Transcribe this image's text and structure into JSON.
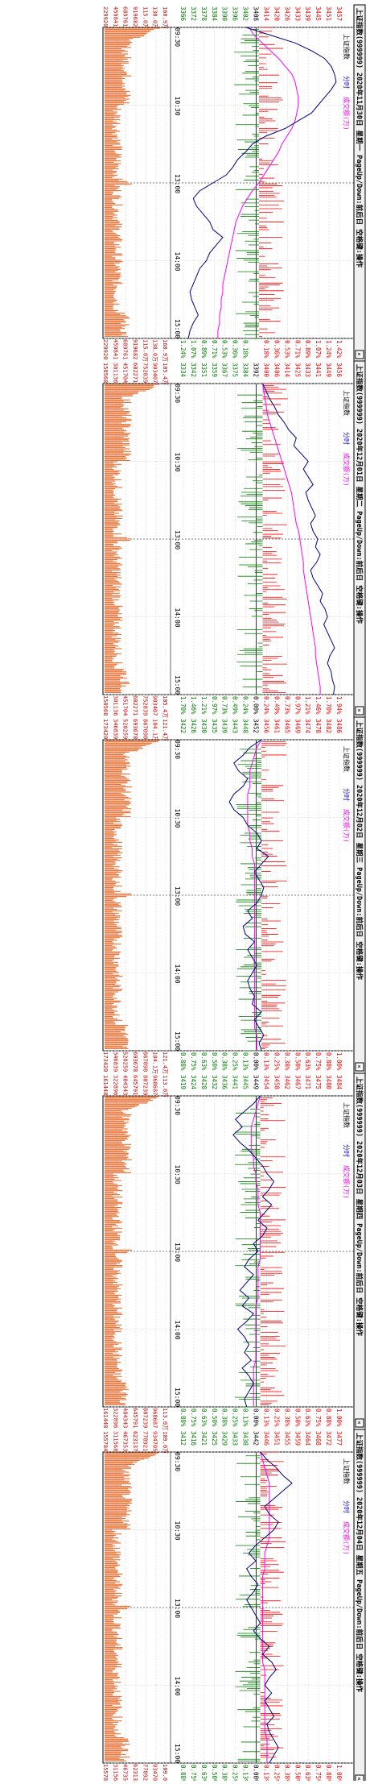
{
  "panels": [
    {
      "header": "上证指数(999999)  2020年11月30日 星期一  PageUp/Down:前后日 空格键:操作",
      "legend": {
        "name": "上证指数",
        "mode": "分时",
        "volume": "成交额(万)"
      },
      "close_btn": "×",
      "price_ticks": [
        "3457",
        "3451",
        "3445",
        "3439",
        "3433",
        "3426",
        "3420",
        "3414",
        "3408",
        "3402",
        "3396",
        "3390",
        "3384",
        "3378",
        "3372",
        "3366"
      ],
      "pct_ticks_left": [
        "1.42%",
        "1.24%",
        "1.07%",
        "0.89%",
        "0.71%",
        "0.53%",
        "0.36%",
        "0.18%",
        "",
        "0.18%",
        "0.36%",
        "0.53%",
        "0.71%",
        "0.89%",
        "1.07%",
        "1.24%"
      ],
      "pct_ticks_right": [
        "1.42%",
        "1.24%",
        "1.07%",
        "0.89%",
        "0.71%",
        "0.53%",
        "0.36%",
        "0.18%",
        "",
        "0.18%",
        "0.36%",
        "0.53%",
        "0.71%",
        "0.89%",
        "1.07%",
        "1.24%"
      ],
      "vol_ticks": [
        "160.9万",
        "138.0万",
        "115.0万",
        "919682",
        "689761",
        "459841",
        "229920"
      ],
      "vol_ticks_right": [
        "160.9万",
        "138.0万",
        "115.0万",
        "919682",
        "689761",
        "459841",
        "229920"
      ]
    },
    {
      "header": "上证指数(999999)  2020年12月01日 星期二  PageUp/Down:前后日 空格键:操作",
      "legend": {
        "name": "上证指数",
        "mode": "分时",
        "volume": "成交额(万)"
      },
      "close_btn": "×",
      "price_ticks": [
        "3456",
        "3449",
        "3441",
        "3433",
        "3425",
        "3414",
        "3406",
        "3400",
        "3392",
        "3384",
        "3375",
        "3367",
        "3359",
        "3351",
        "3342",
        "3334"
      ],
      "pct_ticks_left": [
        "1.94%",
        "1.70%",
        "1.46%",
        "1.21%",
        "0.97%",
        "0.73%",
        "0.49%",
        "0.24%",
        "0.00%",
        "0.24%",
        "0.49%",
        "0.73%",
        "0.97%",
        "1.21%",
        "1.46%",
        "1.70%"
      ],
      "pct_ticks_right": [
        "1.94%",
        "1.70%",
        "1.46%",
        "1.21%",
        "0.97%",
        "0.73%",
        "0.49%",
        "0.24%",
        "0.00%",
        "0.24%",
        "0.49%",
        "0.73%",
        "0.97%",
        "1.21%",
        "1.46%",
        "1.70%"
      ],
      "vol_ticks": [
        "105.4万",
        "903407",
        "752839",
        "602271",
        "451704",
        "301136",
        "150568"
      ],
      "vol_ticks_right": [
        "105.4万",
        "903407",
        "752839",
        "602271",
        "451704",
        "301136",
        "150568"
      ]
    },
    {
      "header": "上证指数(999999)  2020年12月02日 星期三  PageUp/Down:前后日 空格键:操作",
      "legend": {
        "name": "上证指数",
        "mode": "分时",
        "volume": "成交额(万)"
      },
      "close_btn": "×",
      "price_ticks": [
        "3486",
        "3482",
        "3478",
        "3474",
        "3469",
        "3465",
        "3461",
        "3456",
        "3452",
        "3448",
        "3443",
        "3439",
        "3435",
        "3430",
        "3426",
        "3422"
      ],
      "pct_ticks_left": [
        "1.00%",
        "0.88%",
        "0.75%",
        "0.63%",
        "0.50%",
        "0.38%",
        "0.25%",
        "0.13%",
        "0.00%",
        "0.13%",
        "0.25%",
        "0.38%",
        "0.50%",
        "0.63%",
        "0.75%",
        "0.88%"
      ],
      "pct_ticks_right": [
        "1.00%",
        "0.88%",
        "0.75%",
        "0.63%",
        "0.50%",
        "0.38%",
        "0.25%",
        "0.13%",
        "0.00%",
        "0.13%",
        "0.25%",
        "0.38%",
        "0.50%",
        "0.63%",
        "0.75%",
        "0.88%"
      ],
      "vol_ticks": [
        "121.4万",
        "104.1万",
        "867098",
        "693678",
        "520259",
        "346839",
        "173420"
      ],
      "vol_ticks_right": [
        "121.4万",
        "104.1万",
        "867098",
        "693678",
        "520259",
        "346839",
        "173420"
      ]
    },
    {
      "header": "上证指数(999999)  2020年12月03日 星期四  PageUp/Down:前后日 空格键:操作",
      "legend": {
        "name": "上证指数",
        "mode": "分时",
        "volume": "成交额(万)"
      },
      "close_btn": "×",
      "price_ticks": [
        "3484",
        "3480",
        "3475",
        "3471",
        "3467",
        "3462",
        "3458",
        "3454",
        "3449",
        "3445",
        "3441",
        "3436",
        "3432",
        "3428",
        "3424",
        "3419"
      ],
      "pct_ticks_left": [
        "1.00%",
        "0.88%",
        "0.75%",
        "0.63%",
        "0.50%",
        "0.38%",
        "0.25%",
        "0.13%",
        "0.00%",
        "0.13%",
        "0.25%",
        "0.38%",
        "0.50%",
        "0.63%",
        "0.75%",
        "0.88%"
      ],
      "pct_ticks_right": [
        "1.00%",
        "0.88%",
        "0.75%",
        "0.63%",
        "0.50%",
        "0.38%",
        "0.25%",
        "0.13%",
        "0.00%",
        "0.13%",
        "0.25%",
        "0.38%",
        "0.50%",
        "0.63%",
        "0.75%",
        "0.88%"
      ],
      "vol_ticks": [
        "113.0万",
        "968687",
        "807239",
        "645791",
        "484343",
        "322896",
        "161448"
      ],
      "vol_ticks_right": [
        "113.0万",
        "968687",
        "807239",
        "645791",
        "484343",
        "322896",
        "161448"
      ]
    },
    {
      "header": "上证指数(999999)  2020年12月04日 星期五  PageUp/Down:前后日 空格键:操作",
      "legend": {
        "name": "上证指数",
        "mode": "分时",
        "volume": "成交额(万)"
      },
      "close_btn": "×",
      "price_ticks": [
        "3477",
        "3472",
        "3468",
        "3464",
        "3459",
        "3455",
        "3451",
        "3446",
        "3442",
        "3438",
        "3433",
        "3429",
        "3425",
        "3421",
        "3416",
        "3412"
      ],
      "pct_ticks_left": [
        "1.00%",
        "0.88%",
        "0.75%",
        "0.63%",
        "0.50%",
        "0.38%",
        "0.25%",
        "0.13%",
        "0.00%",
        "0.13%",
        "0.25%",
        "0.38%",
        "0.50%",
        "0.63%",
        "0.75%",
        "0.88%"
      ],
      "pct_ticks_right": [
        "1.00%",
        "0.88%",
        "0.75%",
        "0.63%",
        "0.50%",
        "0.38%",
        "0.25%",
        "0.13%",
        "0.00%",
        "0.13%",
        "0.25%",
        "0.38%",
        "0.50%",
        "0.63%",
        "0.75%",
        "0.88%"
      ],
      "vol_ticks": [
        "109.0万",
        "934705",
        "778921",
        "623137",
        "467353",
        "311568",
        "155784"
      ],
      "vol_ticks_right": [
        "109.0万",
        "934705",
        "778921",
        "623137",
        "467353",
        "311568",
        "155784"
      ]
    }
  ],
  "chart_data": [
    {
      "type": "line",
      "title": "上证指数(999999) 2020年11月30日",
      "x_ticks": [
        "09:30",
        "10:30",
        "13:00",
        "14:00",
        "15:00"
      ],
      "prev_close": 3408,
      "price_range": [
        3362,
        3457
      ],
      "series": [
        {
          "name": "上证指数",
          "values": [
            3400,
            3415,
            3430,
            3440,
            3448,
            3452,
            3454,
            3455,
            3452,
            3448,
            3444,
            3440,
            3432,
            3424,
            3412,
            3404,
            3400,
            3395,
            3392,
            3388,
            3380,
            3372,
            3368,
            3370,
            3374,
            3378,
            3380,
            3386,
            3382,
            3378,
            3376,
            3372,
            3370,
            3368,
            3366,
            3367,
            3369,
            3371,
            3368,
            3366,
            3365
          ]
        },
        {
          "name": "分时均价",
          "values": [
            3402,
            3405,
            3410,
            3415,
            3420,
            3424,
            3428,
            3430,
            3431,
            3432,
            3432,
            3431,
            3430,
            3428,
            3425,
            3422,
            3420,
            3417,
            3414,
            3411,
            3408,
            3404,
            3401,
            3398,
            3396,
            3394,
            3393,
            3392,
            3391,
            3390,
            3389,
            3388,
            3387,
            3386,
            3386,
            3385,
            3385,
            3384,
            3384,
            3383,
            3383
          ]
        }
      ],
      "volume_peak": 1609000
    },
    {
      "type": "line",
      "title": "上证指数(999999) 2020年12月01日",
      "x_ticks": [
        "09:30",
        "10:30",
        "13:00",
        "14:00",
        "15:00"
      ],
      "prev_close": 3392,
      "price_range": [
        3326,
        3456
      ],
      "series": [
        {
          "name": "上证指数",
          "values": [
            3392,
            3395,
            3398,
            3402,
            3405,
            3410,
            3414,
            3420,
            3418,
            3424,
            3430,
            3426,
            3430,
            3434,
            3428,
            3430,
            3433,
            3436,
            3432,
            3434,
            3438,
            3436,
            3440,
            3437,
            3432,
            3434,
            3438,
            3442,
            3440,
            3444,
            3446,
            3443,
            3446,
            3449,
            3452,
            3448,
            3446,
            3449,
            3450,
            3452,
            3451
          ]
        },
        {
          "name": "分时均价",
          "values": [
            3392,
            3393,
            3394,
            3395,
            3396,
            3398,
            3400,
            3402,
            3404,
            3406,
            3408,
            3410,
            3412,
            3414,
            3416,
            3417,
            3418,
            3419,
            3420,
            3422,
            3423,
            3424,
            3425,
            3426,
            3426,
            3427,
            3428,
            3429,
            3430,
            3431,
            3432,
            3433,
            3434,
            3435,
            3436,
            3436,
            3437,
            3438,
            3439,
            3440,
            3440
          ]
        }
      ],
      "volume_peak": 1054000
    },
    {
      "type": "line",
      "title": "上证指数(999999) 2020年12月02日",
      "x_ticks": [
        "09:30",
        "10:30",
        "13:00",
        "14:00",
        "15:00"
      ],
      "prev_close": 3452,
      "price_range": [
        3418,
        3486
      ],
      "series": [
        {
          "name": "上证指数",
          "values": [
            3452,
            3447,
            3444,
            3440,
            3442,
            3446,
            3444,
            3440,
            3438,
            3440,
            3444,
            3446,
            3450,
            3452,
            3450,
            3455,
            3452,
            3449,
            3451,
            3453,
            3452,
            3450,
            3446,
            3448,
            3444,
            3445,
            3449,
            3446,
            3448,
            3450,
            3448,
            3446,
            3447,
            3449,
            3448,
            3452,
            3449,
            3451,
            3453,
            3451,
            3452
          ]
        },
        {
          "name": "分时均价",
          "values": [
            3452,
            3450,
            3449,
            3448,
            3447,
            3447,
            3447,
            3446,
            3446,
            3446,
            3446,
            3446,
            3447,
            3447,
            3448,
            3448,
            3449,
            3449,
            3449,
            3449,
            3449,
            3449,
            3449,
            3449,
            3449,
            3449,
            3449,
            3449,
            3449,
            3449,
            3449,
            3449,
            3449,
            3449,
            3449,
            3449,
            3449,
            3449,
            3450,
            3450,
            3450
          ]
        }
      ],
      "volume_peak": 1214000
    },
    {
      "type": "line",
      "title": "上证指数(999999) 2020年12月03日",
      "x_ticks": [
        "09:30",
        "10:30",
        "13:00",
        "14:00",
        "15:00"
      ],
      "prev_close": 3449,
      "price_range": [
        3415,
        3484
      ],
      "series": [
        {
          "name": "上证指数",
          "values": [
            3449,
            3446,
            3442,
            3438,
            3441,
            3437,
            3440,
            3444,
            3447,
            3450,
            3452,
            3455,
            3453,
            3450,
            3454,
            3451,
            3448,
            3452,
            3450,
            3446,
            3448,
            3444,
            3442,
            3446,
            3443,
            3440,
            3444,
            3441,
            3446,
            3443,
            3439,
            3442,
            3444,
            3442,
            3445,
            3441,
            3444,
            3446,
            3444,
            3442,
            3443
          ]
        },
        {
          "name": "分时均价",
          "values": [
            3449,
            3448,
            3447,
            3446,
            3445,
            3445,
            3445,
            3445,
            3446,
            3446,
            3447,
            3447,
            3448,
            3448,
            3448,
            3449,
            3449,
            3449,
            3449,
            3449,
            3449,
            3449,
            3448,
            3448,
            3448,
            3448,
            3448,
            3447,
            3447,
            3447,
            3447,
            3447,
            3447,
            3447,
            3447,
            3446,
            3446,
            3446,
            3446,
            3446,
            3446
          ]
        }
      ],
      "volume_peak": 1130000
    },
    {
      "type": "line",
      "title": "上证指数(999999) 2020年12月04日",
      "x_ticks": [
        "09:30",
        "10:30",
        "13:00",
        "14:00",
        "15:00"
      ],
      "prev_close": 3442,
      "price_range": [
        3408,
        3477
      ],
      "series": [
        {
          "name": "上证指数",
          "values": [
            3442,
            3445,
            3449,
            3452,
            3456,
            3452,
            3448,
            3444,
            3446,
            3450,
            3448,
            3444,
            3440,
            3437,
            3440,
            3436,
            3438,
            3441,
            3439,
            3436,
            3438,
            3440,
            3442,
            3439,
            3442,
            3446,
            3443,
            3447,
            3449,
            3446,
            3444,
            3447,
            3444,
            3446,
            3448,
            3445,
            3446,
            3448,
            3450,
            3448,
            3446
          ]
        },
        {
          "name": "分时均价",
          "values": [
            3442,
            3443,
            3444,
            3445,
            3446,
            3446,
            3446,
            3446,
            3446,
            3446,
            3446,
            3446,
            3445,
            3444,
            3444,
            3444,
            3443,
            3443,
            3443,
            3443,
            3443,
            3443,
            3443,
            3443,
            3443,
            3443,
            3443,
            3443,
            3444,
            3444,
            3444,
            3444,
            3444,
            3444,
            3444,
            3444,
            3444,
            3445,
            3445,
            3445,
            3445
          ]
        }
      ],
      "volume_peak": 1090000
    }
  ],
  "colors": {
    "border": "#000000",
    "grid": "#d0d0d0",
    "price": "#000080",
    "avg": "#ff00ff",
    "up": "#ff0000",
    "down": "#008000",
    "volume": "#e8601c",
    "axis_text": "#cc0000",
    "label_blue": "#0000ff"
  }
}
